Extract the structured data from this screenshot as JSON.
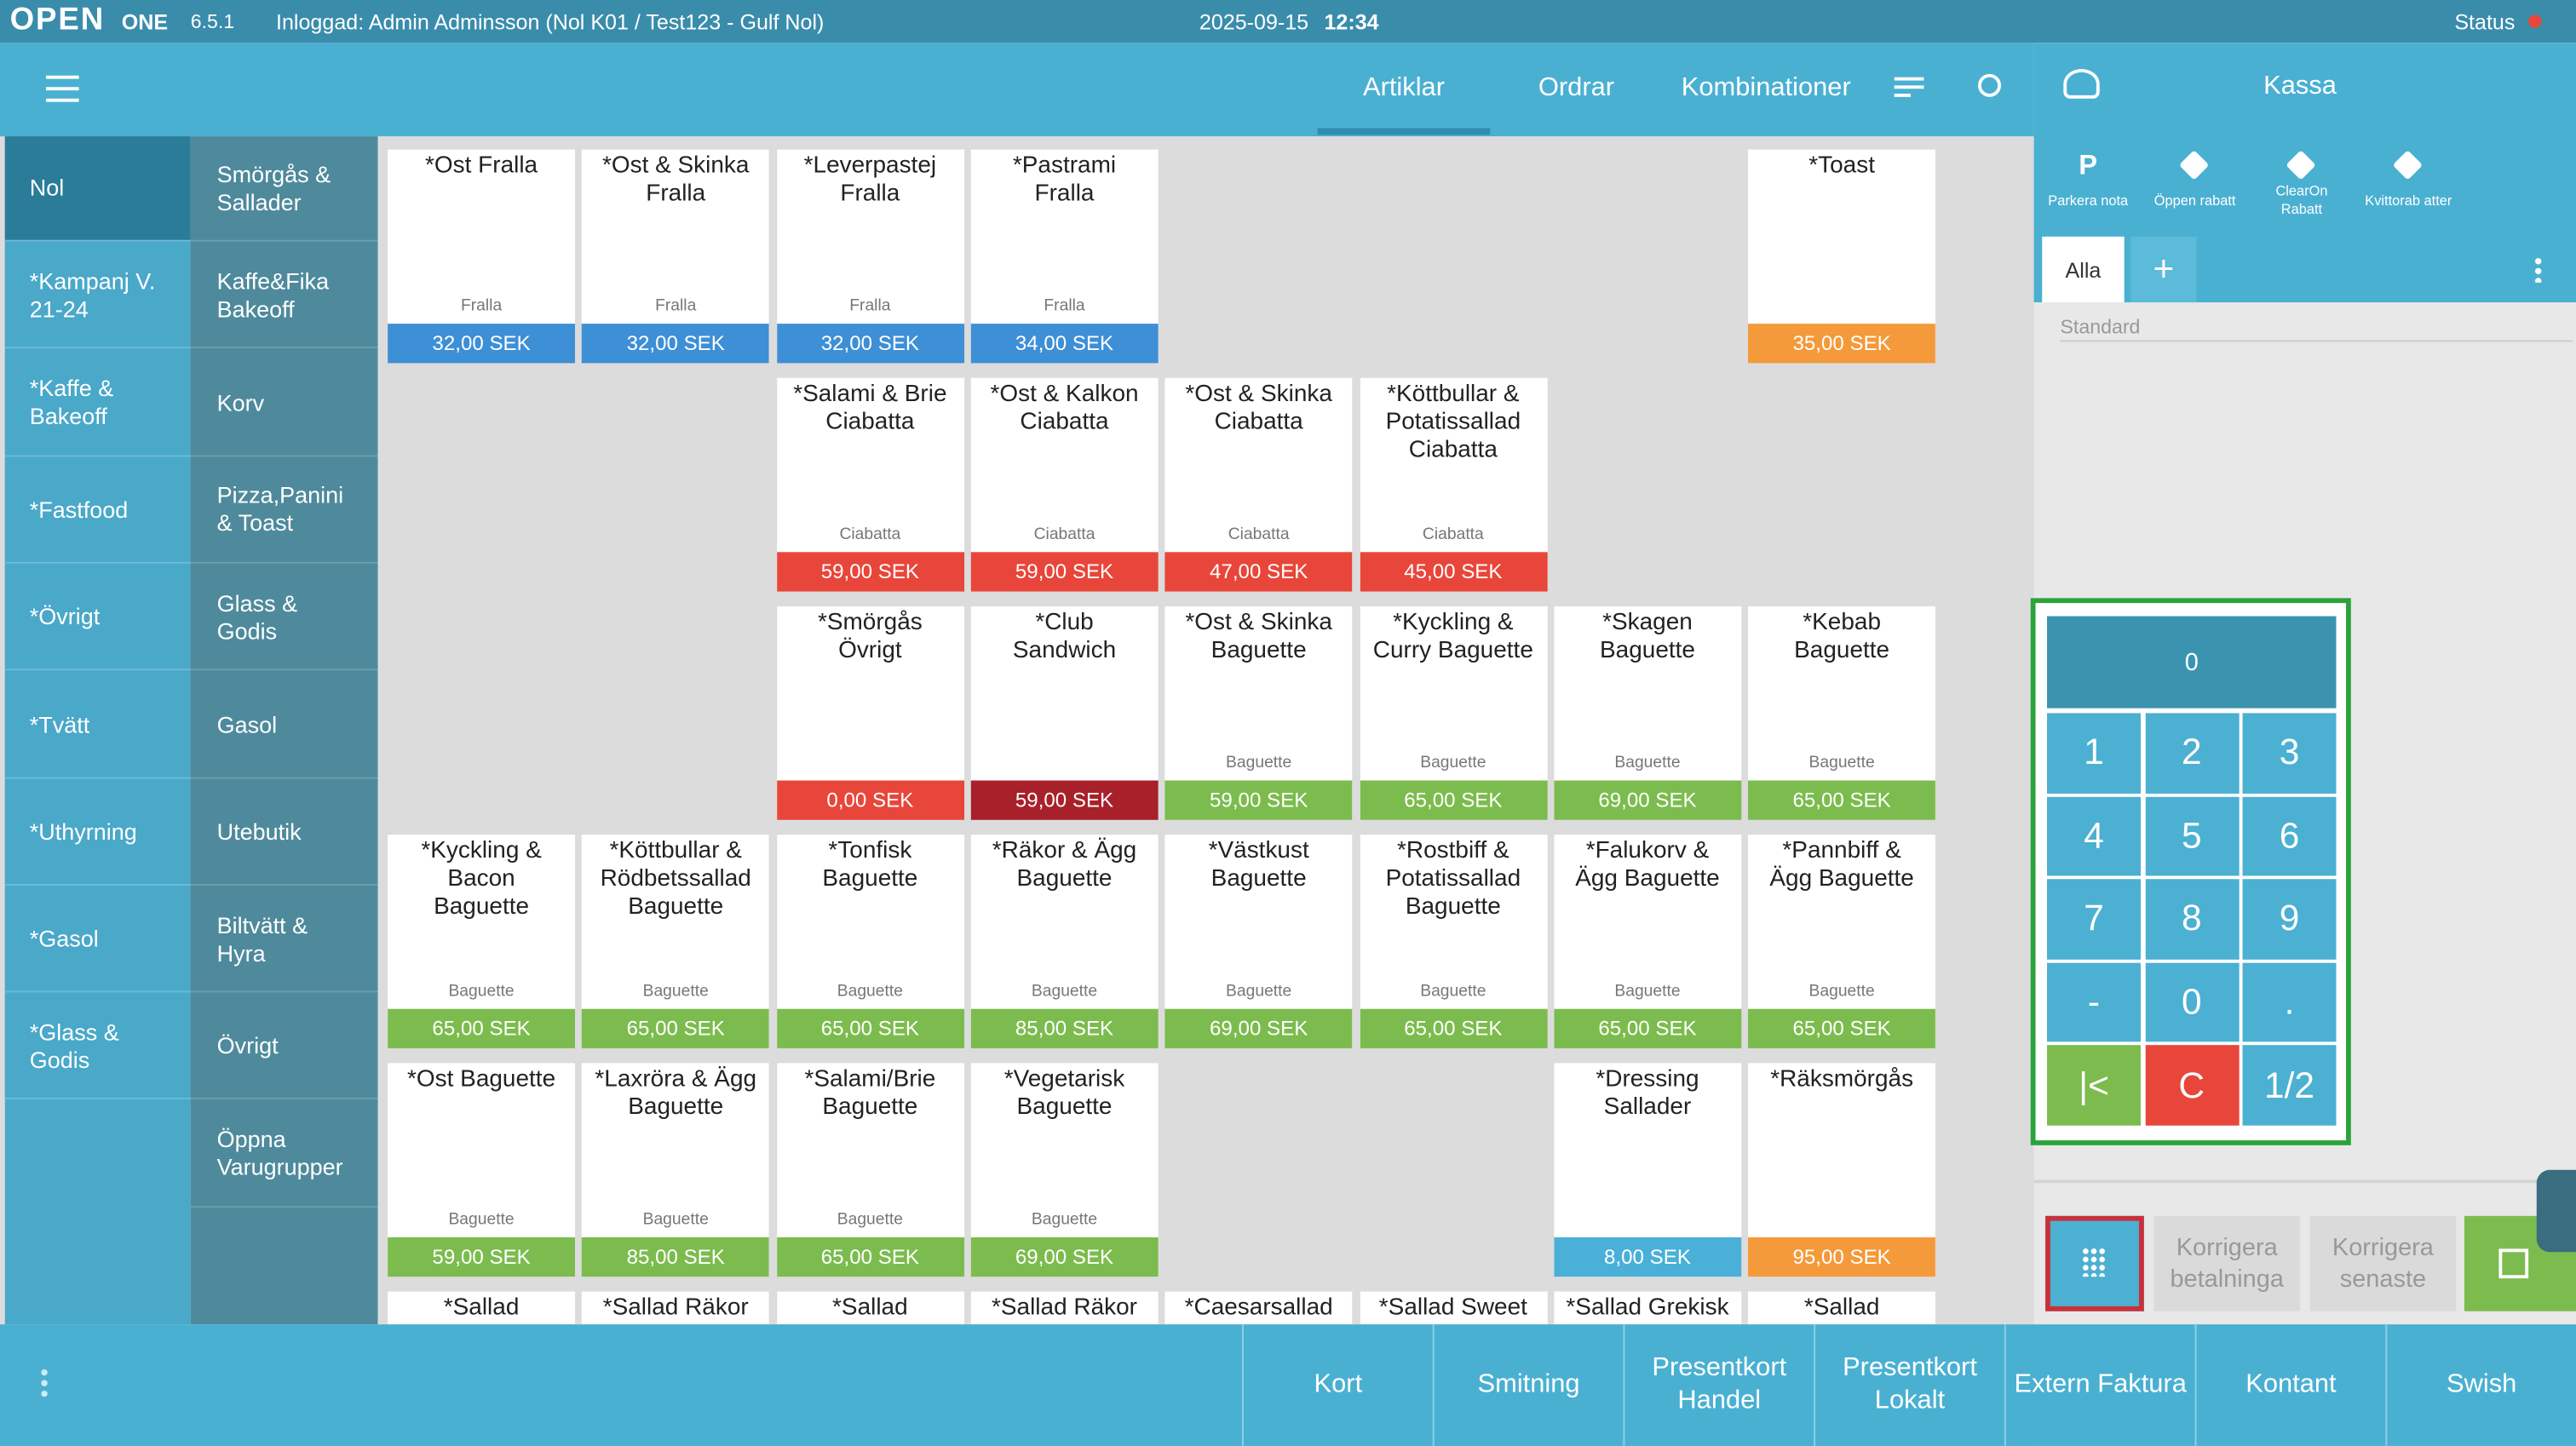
{
  "top": {
    "logo": "OPEN",
    "brand": "ONE",
    "version": "6.5.1",
    "user": "Inloggad: Admin Adminsson (Nol K01 / Test123 - Gulf Nol)",
    "date": "2025-09-15",
    "time": "12:34",
    "status": "Status"
  },
  "tabs": [
    "Artiklar",
    "Ordrar",
    "Kombinationer"
  ],
  "groups": [
    "Nol",
    "*Kampanj V. 21-24",
    "*Kaffe & Bakeoff",
    "*Fastfood",
    "*Övrigt",
    "*Tvätt",
    "*Uthyrning",
    "*Gasol",
    "*Glass & Godis"
  ],
  "subgroups": [
    "Smörgås & Sallader",
    "Kaffe&Fika Bakeoff",
    "Korv",
    "Pizza,Panini & Toast",
    "Glass & Godis",
    "Gasol",
    "Utebutik",
    "Biltvätt & Hyra",
    "Övrigt",
    "Öppna Varugrupper"
  ],
  "products": [
    [
      {
        "name": "*Ost Fralla",
        "group": "Fralla",
        "price": "32,00 SEK",
        "color": "#3d8fd6"
      },
      {
        "name": "*Ost & Skinka Fralla",
        "group": "Fralla",
        "price": "32,00 SEK",
        "color": "#3d8fd6"
      },
      {
        "name": "*Leverpastej Fralla",
        "group": "Fralla",
        "price": "32,00 SEK",
        "color": "#3d8fd6"
      },
      {
        "name": "*Pastrami Fralla",
        "group": "Fralla",
        "price": "34,00 SEK",
        "color": "#3d8fd6"
      },
      null,
      null,
      null,
      {
        "name": "*Toast",
        "price": "35,00 SEK",
        "color": "#f49a3a"
      }
    ],
    [
      null,
      null,
      {
        "name": "*Salami & Brie Ciabatta",
        "group": "Ciabatta",
        "price": "59,00 SEK",
        "color": "#e8463a"
      },
      {
        "name": "*Ost & Kalkon Ciabatta",
        "group": "Ciabatta",
        "price": "59,00 SEK",
        "color": "#e8463a"
      },
      {
        "name": "*Ost & Skinka Ciabatta",
        "group": "Ciabatta",
        "price": "47,00 SEK",
        "color": "#e8463a"
      },
      {
        "name": "*Köttbullar & Potatissallad Ciabatta",
        "group": "Ciabatta",
        "price": "45,00 SEK",
        "color": "#e8463a"
      },
      null,
      null
    ],
    [
      null,
      null,
      {
        "name": "*Smörgås Övrigt",
        "price": "0,00 SEK",
        "color": "#e8463a"
      },
      {
        "name": "*Club Sandwich",
        "price": "59,00 SEK",
        "color": "#a8202a"
      },
      {
        "name": "*Ost & Skinka Baguette",
        "group": "Baguette",
        "price": "59,00 SEK",
        "color": "#7cbc4e"
      },
      {
        "name": "*Kyckling & Curry Baguette",
        "group": "Baguette",
        "price": "65,00 SEK",
        "color": "#7cbc4e"
      },
      {
        "name": "*Skagen Baguette",
        "group": "Baguette",
        "price": "69,00 SEK",
        "color": "#7cbc4e"
      },
      {
        "name": "*Kebab Baguette",
        "group": "Baguette",
        "price": "65,00 SEK",
        "color": "#7cbc4e"
      }
    ],
    [
      {
        "name": "*Kyckling & Bacon Baguette",
        "group": "Baguette",
        "price": "65,00 SEK",
        "color": "#7cbc4e"
      },
      {
        "name": "*Köttbullar & Rödbetssallad Baguette",
        "group": "Baguette",
        "price": "65,00 SEK",
        "color": "#7cbc4e"
      },
      {
        "name": "*Tonfisk Baguette",
        "group": "Baguette",
        "price": "65,00 SEK",
        "color": "#7cbc4e"
      },
      {
        "name": "*Räkor & Ägg Baguette",
        "group": "Baguette",
        "price": "85,00 SEK",
        "color": "#7cbc4e"
      },
      {
        "name": "*Västkust Baguette",
        "group": "Baguette",
        "price": "69,00 SEK",
        "color": "#7cbc4e"
      },
      {
        "name": "*Rostbiff & Potatissallad Baguette",
        "group": "Baguette",
        "price": "65,00 SEK",
        "color": "#7cbc4e"
      },
      {
        "name": "*Falukorv & Ägg Baguette",
        "group": "Baguette",
        "price": "65,00 SEK",
        "color": "#7cbc4e"
      },
      {
        "name": "*Pannbiff & Ägg Baguette",
        "group": "Baguette",
        "price": "65,00 SEK",
        "color": "#7cbc4e"
      }
    ],
    [
      {
        "name": "*Ost Baguette",
        "group": "Baguette",
        "price": "59,00 SEK",
        "color": "#7cbc4e"
      },
      {
        "name": "*Laxröra & Ägg Baguette",
        "group": "Baguette",
        "price": "85,00 SEK",
        "color": "#7cbc4e"
      },
      {
        "name": "*Salami/Brie Baguette",
        "group": "Baguette",
        "price": "65,00 SEK",
        "color": "#7cbc4e"
      },
      {
        "name": "*Vegetarisk Baguette",
        "group": "Baguette",
        "price": "69,00 SEK",
        "color": "#7cbc4e"
      },
      null,
      null,
      {
        "name": "*Dressing Sallader",
        "price": "8,00 SEK",
        "color": "#4ab0d8"
      },
      {
        "name": "*Räksmörgås",
        "price": "95,00 SEK",
        "color": "#f49a3a"
      }
    ],
    [
      {
        "name": "*Sallad"
      },
      {
        "name": "*Sallad Räkor"
      },
      {
        "name": "*Sallad"
      },
      {
        "name": "*Sallad Räkor"
      },
      {
        "name": "*Caesarsallad"
      },
      {
        "name": "*Sallad Sweet"
      },
      {
        "name": "*Sallad Grekisk"
      },
      {
        "name": "*Sallad"
      }
    ]
  ],
  "register": {
    "title": "Kassa",
    "actions": [
      {
        "icon": "P",
        "label": "Parkera nota"
      },
      {
        "label": "Öppen rabatt"
      },
      {
        "label": "ClearOn Rabatt"
      },
      {
        "label": "Kvittorab atter"
      }
    ],
    "tab": "Alla",
    "add": "+",
    "price_list": "Standard"
  },
  "keypad": {
    "display": "0",
    "keys": [
      "1",
      "2",
      "3",
      "4",
      "5",
      "6",
      "7",
      "8",
      "9",
      "-",
      "0",
      ".",
      "|<",
      "C",
      "1/2"
    ]
  },
  "corrections": [
    "Korrigera betalninga",
    "Korrigera senaste"
  ],
  "payments": [
    "Kort",
    "Smitning",
    "Presentkort Handel",
    "Presentkort Lokalt",
    "Extern Faktura",
    "Kontant",
    "Swish"
  ]
}
